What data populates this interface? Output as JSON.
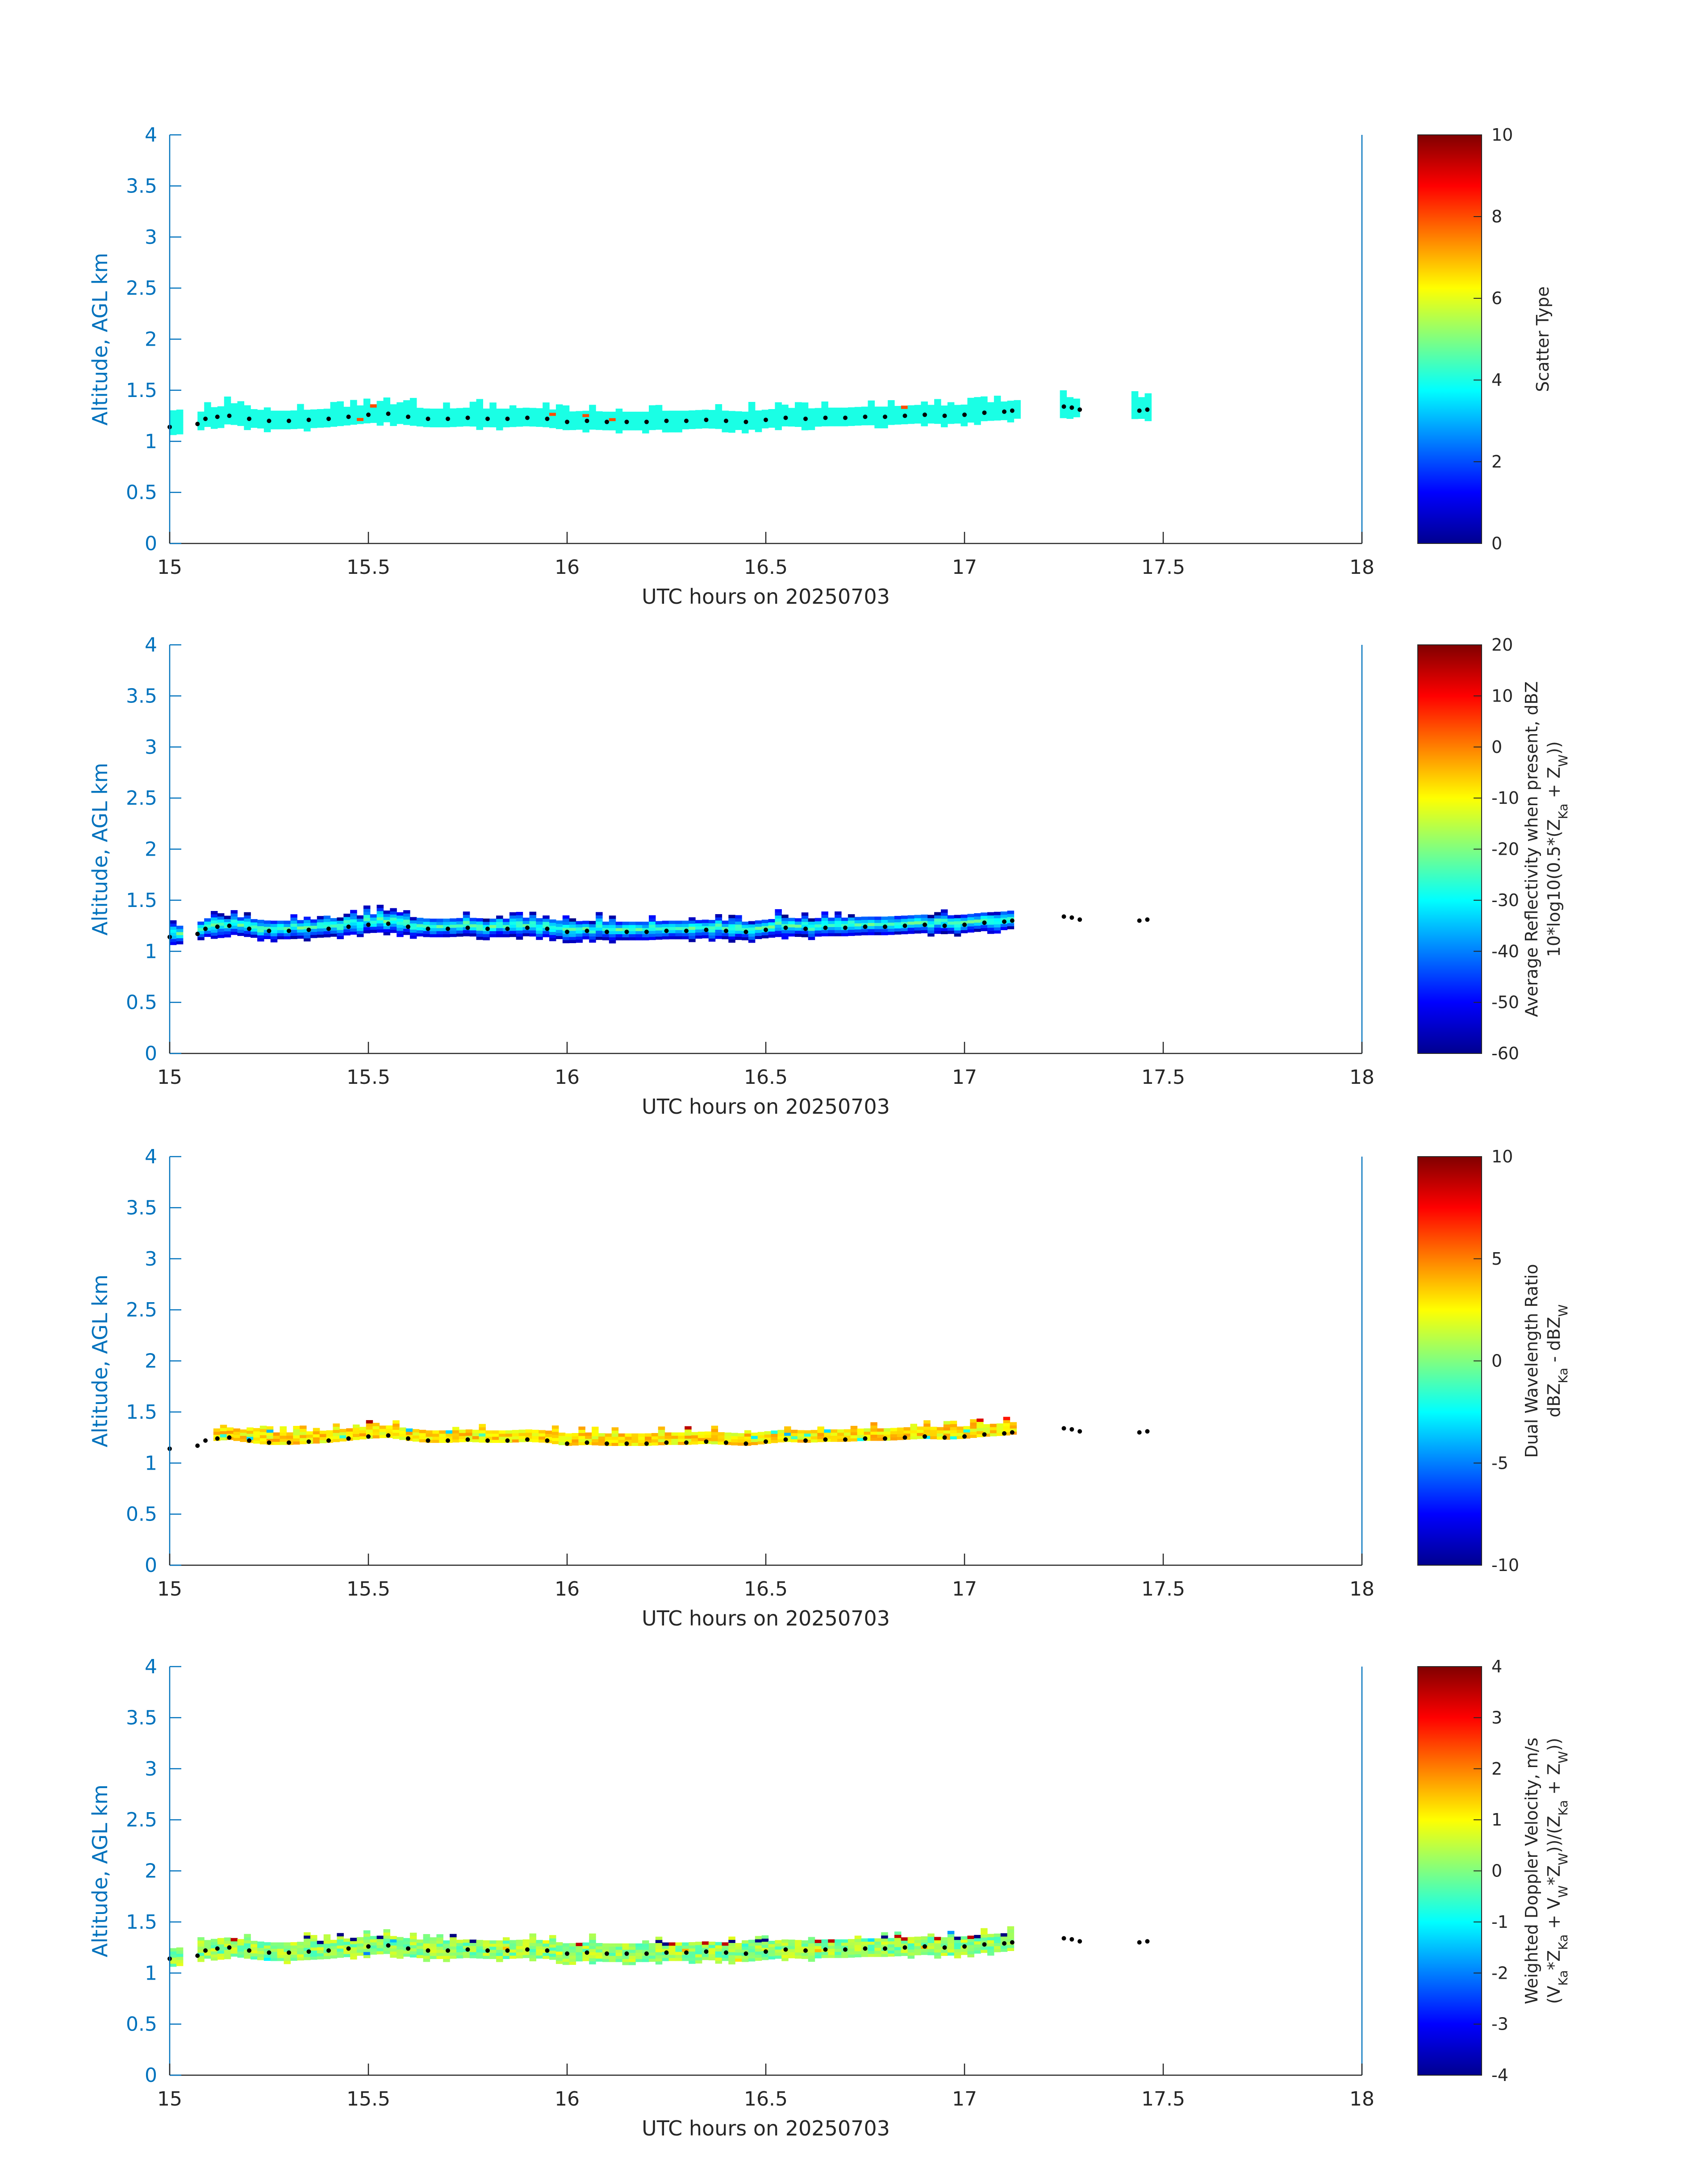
{
  "figure": {
    "colors": {
      "axis": "#0072bd",
      "text": "#262626",
      "marker": "#000000",
      "background": "#ffffff"
    },
    "colormap": "jet"
  },
  "chart_data": [
    {
      "type": "heatmap",
      "title": "",
      "xlabel": "UTC hours on 20250703",
      "ylabel": "Altitude, AGL km",
      "xlim": [
        15,
        18
      ],
      "ylim": [
        0,
        4
      ],
      "xticks": [
        "15",
        "15.5",
        "16",
        "16.5",
        "17",
        "17.5",
        "18"
      ],
      "yticks": [
        "0",
        "0.5",
        "1",
        "1.5",
        "2",
        "2.5",
        "3",
        "3.5",
        "4"
      ],
      "grid": false,
      "colorbar": {
        "label_lines": [
          "Scatter Type"
        ],
        "range": [
          0,
          10
        ],
        "ticks": [
          "0",
          "2",
          "4",
          "6",
          "8",
          "10"
        ]
      },
      "field_mode": "type",
      "dominant_value": 4,
      "cloud_segments": [
        [
          15.0,
          15.02
        ],
        [
          15.07,
          17.13
        ],
        [
          17.24,
          17.29
        ],
        [
          17.42,
          17.46
        ]
      ]
    },
    {
      "type": "heatmap",
      "title": "",
      "xlabel": "UTC hours on 20250703",
      "ylabel": "Altitude, AGL km",
      "xlim": [
        15,
        18
      ],
      "ylim": [
        0,
        4
      ],
      "xticks": [
        "15",
        "15.5",
        "16",
        "16.5",
        "17",
        "17.5",
        "18"
      ],
      "yticks": [
        "0",
        "0.5",
        "1",
        "1.5",
        "2",
        "2.5",
        "3",
        "3.5",
        "4"
      ],
      "grid": false,
      "colorbar": {
        "label_lines": [
          "Average Reflectivity when present, dBZ",
          "10*log10(0.5*(Z_Ka + Z_W))"
        ],
        "range": [
          -60,
          20
        ],
        "ticks": [
          "-60",
          "-50",
          "-40",
          "-30",
          "-20",
          "-10",
          "0",
          "10",
          "20"
        ]
      },
      "field_mode": "reflectivity",
      "cloud_segments": [
        [
          15.0,
          15.02
        ],
        [
          15.07,
          17.12
        ]
      ]
    },
    {
      "type": "heatmap",
      "title": "",
      "xlabel": "UTC hours on 20250703",
      "ylabel": "Altitude, AGL km",
      "xlim": [
        15,
        18
      ],
      "ylim": [
        0,
        4
      ],
      "xticks": [
        "15",
        "15.5",
        "16",
        "16.5",
        "17",
        "17.5",
        "18"
      ],
      "yticks": [
        "0",
        "0.5",
        "1",
        "1.5",
        "2",
        "2.5",
        "3",
        "3.5",
        "4"
      ],
      "grid": false,
      "colorbar": {
        "label_lines": [
          "Dual Wavelength Ratio",
          "dBZ_Ka - dBZ_W"
        ],
        "range": [
          -10,
          10
        ],
        "ticks": [
          "-10",
          "-5",
          "0",
          "5",
          "10"
        ]
      },
      "field_mode": "dwr",
      "cloud_segments": [
        [
          15.11,
          17.12
        ]
      ]
    },
    {
      "type": "heatmap",
      "title": "",
      "xlabel": "UTC hours on 20250703",
      "ylabel": "Altitude, AGL km",
      "xlim": [
        15,
        18
      ],
      "ylim": [
        0,
        4
      ],
      "xticks": [
        "15",
        "15.5",
        "16",
        "16.5",
        "17",
        "17.5",
        "18"
      ],
      "yticks": [
        "0",
        "0.5",
        "1",
        "1.5",
        "2",
        "2.5",
        "3",
        "3.5",
        "4"
      ],
      "grid": false,
      "colorbar": {
        "label_lines": [
          "Weighted Doppler Velocity, m/s",
          "(V_Ka*Z_Ka + V_W*Z_W))/(Z_Ka + Z_W))"
        ],
        "range": [
          -4,
          4
        ],
        "ticks": [
          "-4",
          "-3",
          "-2",
          "-1",
          "0",
          "1",
          "2",
          "3",
          "4"
        ]
      },
      "field_mode": "velocity",
      "cloud_segments": [
        [
          15.0,
          15.02
        ],
        [
          15.07,
          17.12
        ]
      ]
    }
  ],
  "cloud_base_points": {
    "x": [
      15.0,
      15.07,
      15.09,
      15.12,
      15.15,
      15.2,
      15.25,
      15.3,
      15.35,
      15.4,
      15.45,
      15.5,
      15.55,
      15.6,
      15.65,
      15.7,
      15.75,
      15.8,
      15.85,
      15.9,
      15.95,
      16.0,
      16.05,
      16.1,
      16.15,
      16.2,
      16.25,
      16.3,
      16.35,
      16.4,
      16.45,
      16.5,
      16.55,
      16.6,
      16.65,
      16.7,
      16.75,
      16.8,
      16.85,
      16.9,
      16.95,
      17.0,
      17.05,
      17.1,
      17.12,
      17.25,
      17.27,
      17.29,
      17.44,
      17.46
    ],
    "y": [
      1.14,
      1.17,
      1.22,
      1.24,
      1.25,
      1.22,
      1.2,
      1.2,
      1.21,
      1.22,
      1.24,
      1.26,
      1.27,
      1.24,
      1.22,
      1.22,
      1.23,
      1.22,
      1.22,
      1.23,
      1.22,
      1.19,
      1.2,
      1.19,
      1.19,
      1.19,
      1.2,
      1.2,
      1.21,
      1.2,
      1.19,
      1.21,
      1.23,
      1.22,
      1.23,
      1.23,
      1.24,
      1.24,
      1.25,
      1.26,
      1.25,
      1.26,
      1.28,
      1.29,
      1.3,
      1.34,
      1.33,
      1.31,
      1.3,
      1.31
    ]
  }
}
